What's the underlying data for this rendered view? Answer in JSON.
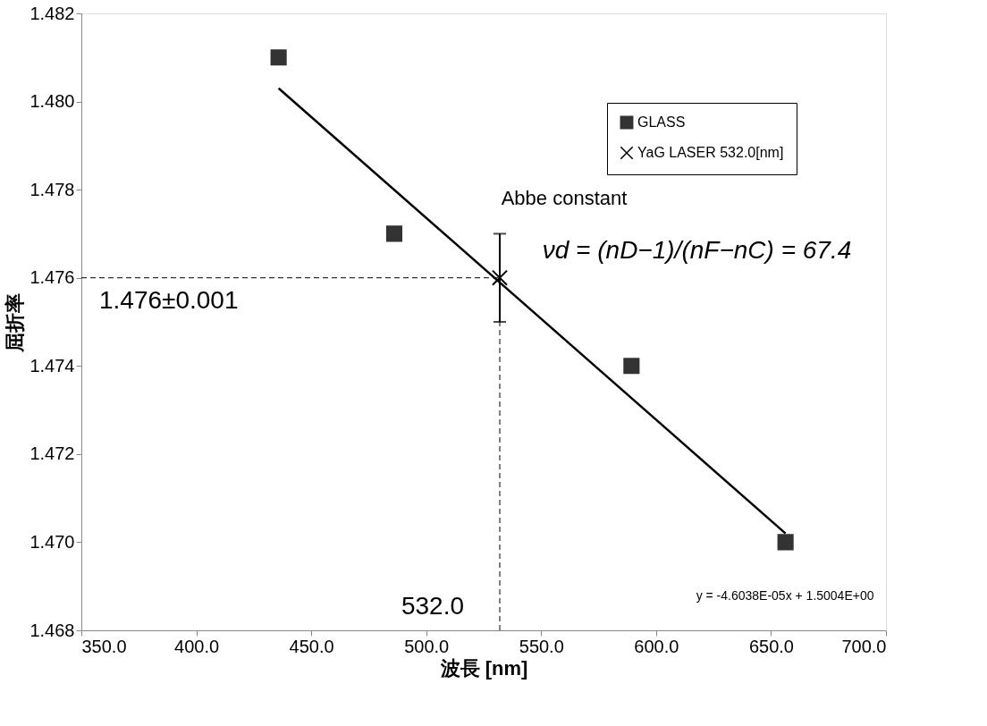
{
  "chart_data": {
    "type": "scatter",
    "xlabel": "波長 [nm]",
    "ylabel": "屈折率",
    "xlim": [
      350,
      700
    ],
    "ylim": [
      1.468,
      1.482
    ],
    "xticks": [
      {
        "value": 350,
        "label": "350.0"
      },
      {
        "value": 400,
        "label": "400.0"
      },
      {
        "value": 450,
        "label": "450.0"
      },
      {
        "value": 500,
        "label": "500.0"
      },
      {
        "value": 550,
        "label": "550.0"
      },
      {
        "value": 600,
        "label": "600.0"
      },
      {
        "value": 650,
        "label": "650.0"
      },
      {
        "value": 700,
        "label": "700.0"
      }
    ],
    "yticks": [
      {
        "value": 1.468,
        "label": "1.468"
      },
      {
        "value": 1.47,
        "label": "1.470"
      },
      {
        "value": 1.472,
        "label": "1.472"
      },
      {
        "value": 1.474,
        "label": "1.474"
      },
      {
        "value": 1.476,
        "label": "1.476"
      },
      {
        "value": 1.478,
        "label": "1.478"
      },
      {
        "value": 1.48,
        "label": "1.480"
      },
      {
        "value": 1.482,
        "label": "1.482"
      }
    ],
    "series": [
      {
        "name": "GLASS",
        "marker": "square",
        "color": "#333333",
        "x": [
          435.8,
          486.1,
          589.3,
          656.3
        ],
        "values": [
          1.481,
          1.477,
          1.474,
          1.47
        ]
      },
      {
        "name": "YaG LASER 532.0[nm]",
        "marker": "cross",
        "color": "#000000",
        "x": [
          532.0
        ],
        "values": [
          1.476
        ],
        "errors": [
          0.001
        ]
      },
      {
        "type": "line",
        "color": "#000000",
        "x": [
          435.8,
          656.3
        ],
        "values": [
          1.4803,
          1.4702
        ]
      }
    ],
    "ref_lines": [
      {
        "axis": "y",
        "value": 1.476,
        "label": "1.476±0.001",
        "line_style": "dashed",
        "color": "#000000"
      },
      {
        "axis": "x",
        "value": 532.0,
        "label": "532.0",
        "line_style": "dashed",
        "color": "#000000"
      }
    ],
    "annotations": [
      "Abbe constant",
      "νd = (nD−1)/(nF−nC) = 67.4",
      "y = -4.6038E-05x + 1.5004E+00"
    ],
    "legend": "top right",
    "grid": false
  }
}
